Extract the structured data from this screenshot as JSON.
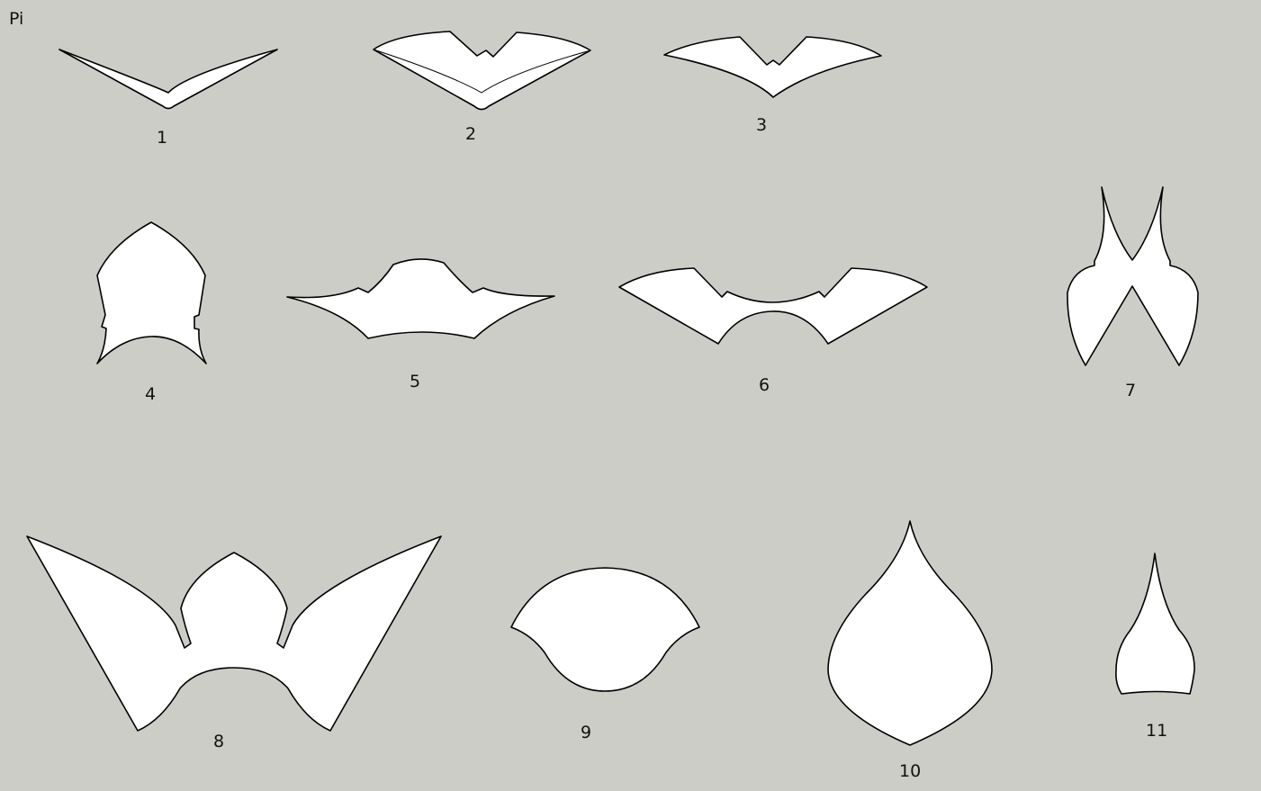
{
  "corner_label": "Pi",
  "pieces": [
    {
      "label": "1"
    },
    {
      "label": "2"
    },
    {
      "label": "3"
    },
    {
      "label": "4"
    },
    {
      "label": "5"
    },
    {
      "label": "6"
    },
    {
      "label": "7"
    },
    {
      "label": "8"
    },
    {
      "label": "9"
    },
    {
      "label": "10"
    },
    {
      "label": "11"
    }
  ]
}
